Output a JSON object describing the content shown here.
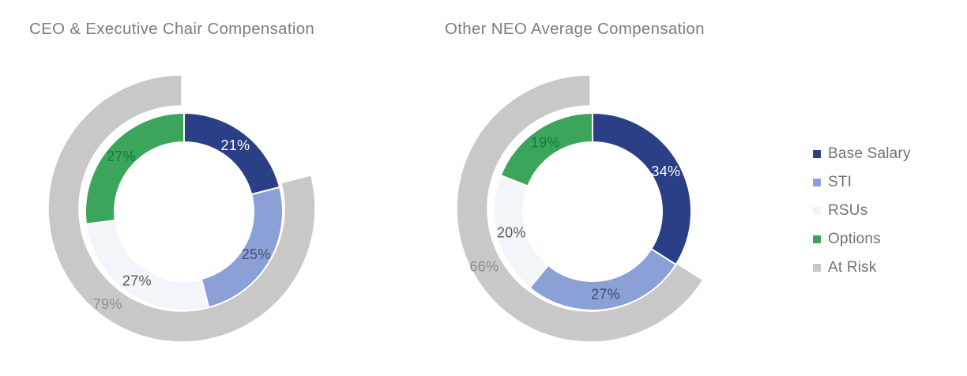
{
  "page": {
    "background": "#ffffff"
  },
  "legend": {
    "items": [
      {
        "label": "Base Salary",
        "color": "#2b3f86"
      },
      {
        "label": "STI",
        "color": "#8ba0d7"
      },
      {
        "label": "RSUs",
        "color": "#eff4f9"
      },
      {
        "label": "Options",
        "color": "#3aa55b"
      },
      {
        "label": "At Risk",
        "color": "#c8c8c8"
      }
    ]
  },
  "chart_data": [
    {
      "type": "donut",
      "title": "CEO & Executive Chair Compensation",
      "legend_position": "right",
      "inner_ring": [
        {
          "label": "Base Salary",
          "value": 21,
          "display": "21%",
          "color": "#2b3f86",
          "label_color": "#ffffff"
        },
        {
          "label": "STI",
          "value": 25,
          "display": "25%",
          "color": "#8ba0d7",
          "label_color": "#454c6b"
        },
        {
          "label": "RSUs",
          "value": 27,
          "display": "27%",
          "color": "#f2f6fa",
          "label_color": "#55575c"
        },
        {
          "label": "Options",
          "value": 27,
          "display": "27%",
          "color": "#3aa55b",
          "label_color": "#177b3d"
        }
      ],
      "outer_ring": {
        "label": "At Risk",
        "value": 79,
        "display": "79%",
        "color": "#c8c8c9",
        "label_color": "#8d8f92"
      }
    },
    {
      "type": "donut",
      "title": "Other NEO Average Compensation",
      "legend_position": "right",
      "inner_ring": [
        {
          "label": "Base Salary",
          "value": 34,
          "display": "34%",
          "color": "#2b3f86",
          "label_color": "#ffffff"
        },
        {
          "label": "STI",
          "value": 27,
          "display": "27%",
          "color": "#8ba0d7",
          "label_color": "#454c6b"
        },
        {
          "label": "RSUs",
          "value": 20,
          "display": "20%",
          "color": "#f2f6fa",
          "label_color": "#55575c"
        },
        {
          "label": "Options",
          "value": 19,
          "display": "19%",
          "color": "#3aa55b",
          "label_color": "#177b3d"
        }
      ],
      "outer_ring": {
        "label": "At Risk",
        "value": 66,
        "display": "66%",
        "color": "#c8c8c9",
        "label_color": "#8d8f92"
      }
    }
  ]
}
